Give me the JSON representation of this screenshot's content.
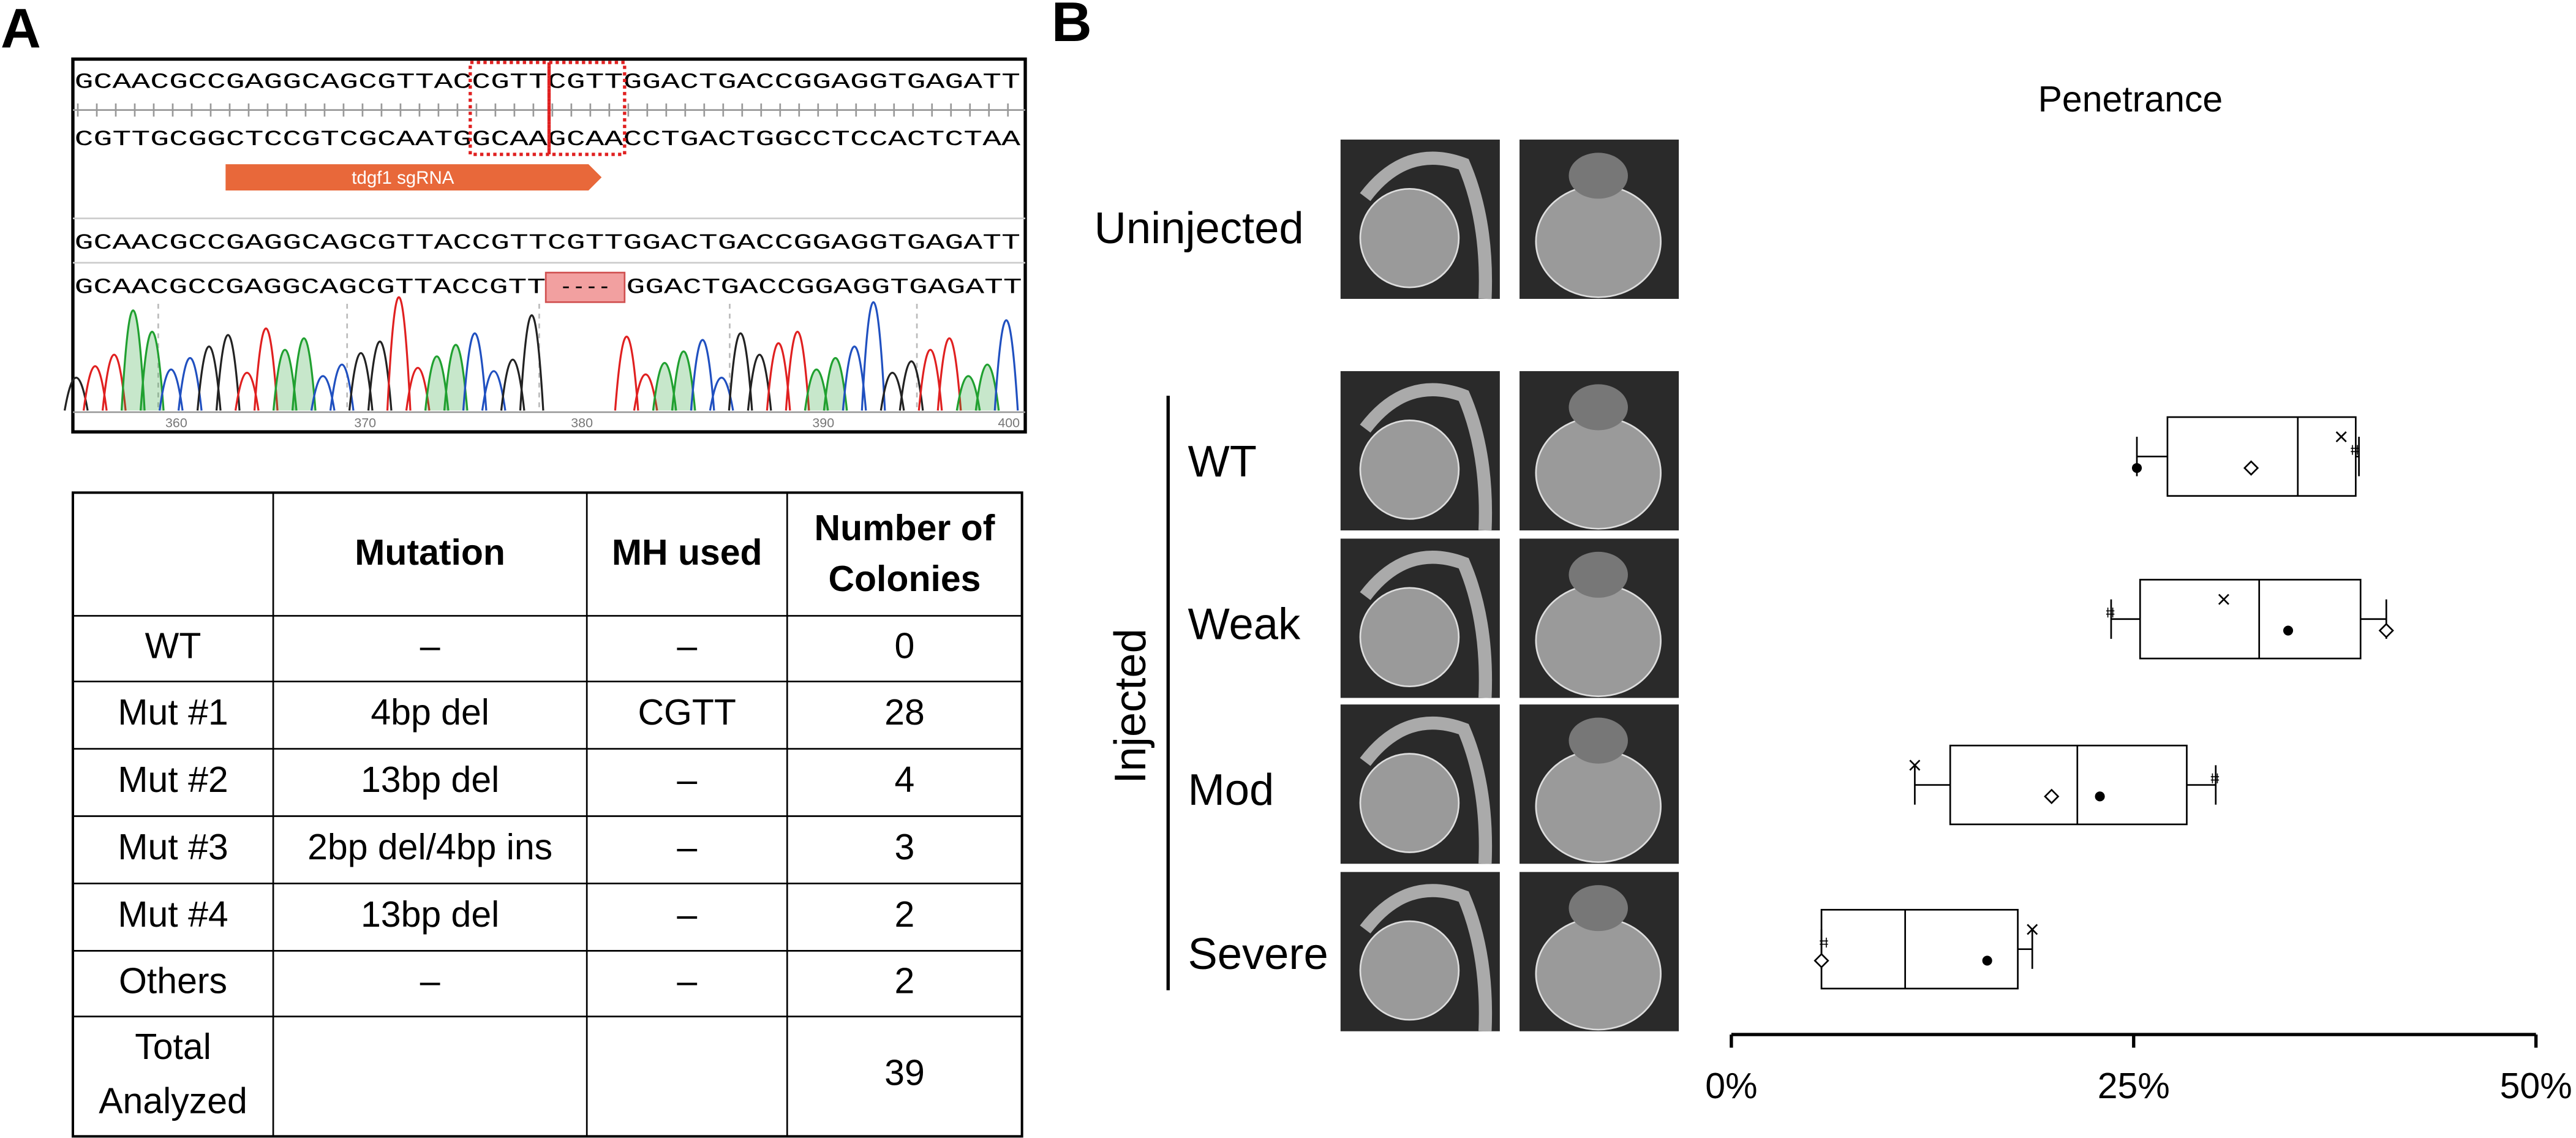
{
  "panels": {
    "a": "A",
    "b": "B"
  },
  "sequence": {
    "ref_top": "GCAACGCCGAGGCAGCGTTACCGTTCGTTGGACTGACCGGAGGTGAGATT",
    "ref_bottom": "CGTTGCGGCTCCGTCGCAATGGCAAGCAACCTGACTGGCCTCCACTCTAA",
    "guide": "tdgf1 sgRNA",
    "wt": "GCAACGCCGAGGCAGCGTTACCGTTCGTTGGACTGACCGGAGGTGAGATT",
    "mut_left": "GCAACGCCGAGGCAGCGTTACCGTT",
    "mut_gap": "----",
    "mut_right": "GGACTGACCGGAGGTGAGATT",
    "positions": [
      360,
      370,
      380,
      390,
      400
    ]
  },
  "table": {
    "header": [
      "Mutation",
      "MH used",
      "Number of Colonies"
    ],
    "rows": [
      [
        "WT",
        "–",
        "–",
        0
      ],
      [
        "Mut #1",
        "4bp del",
        "CGTT",
        28
      ],
      [
        "Mut #2",
        "13bp del",
        "–",
        4
      ],
      [
        "Mut #3",
        "2bp del/4bp ins",
        "–",
        3
      ],
      [
        "Mut #4",
        "13bp del",
        "–",
        2
      ],
      [
        "Others",
        "–",
        "–",
        2
      ]
    ],
    "total": [
      "Total Analyzed",
      39
    ]
  },
  "groups": {
    "control": "Uninjected",
    "treated": "Injected"
  },
  "chart_data": {
    "type": "box",
    "title": "Penetrance",
    "categories": [
      "WT",
      "Weak",
      "Mod",
      "Severe"
    ],
    "boxes": [
      {
        "min": 25.2,
        "q1": 27.1,
        "median": 35.2,
        "q3": 38.8,
        "max": 39.0
      },
      {
        "min": 23.6,
        "q1": 25.4,
        "median": 32.8,
        "q3": 39.1,
        "max": 40.7
      },
      {
        "min": 11.4,
        "q1": 13.6,
        "median": 21.5,
        "q3": 28.3,
        "max": 30.1
      },
      {
        "min": 5.6,
        "q1": 5.6,
        "median": 10.8,
        "q3": 17.8,
        "max": 18.7
      }
    ],
    "points": [
      {
        "marker": "circle",
        "values": [
          25.2,
          34.6,
          22.9,
          15.9
        ]
      },
      {
        "marker": "diamond",
        "values": [
          32.3,
          40.7,
          19.9,
          5.6
        ]
      },
      {
        "marker": "cross",
        "values": [
          37.9,
          30.6,
          11.4,
          18.7
        ]
      },
      {
        "marker": "hash",
        "values": [
          38.8,
          23.6,
          30.1,
          5.8
        ]
      }
    ],
    "xlim": [
      0,
      50
    ],
    "xticks": [
      {
        "value": 0,
        "label": "0%"
      },
      {
        "value": 25,
        "label": "25%"
      },
      {
        "value": 50,
        "label": "50%"
      }
    ]
  }
}
